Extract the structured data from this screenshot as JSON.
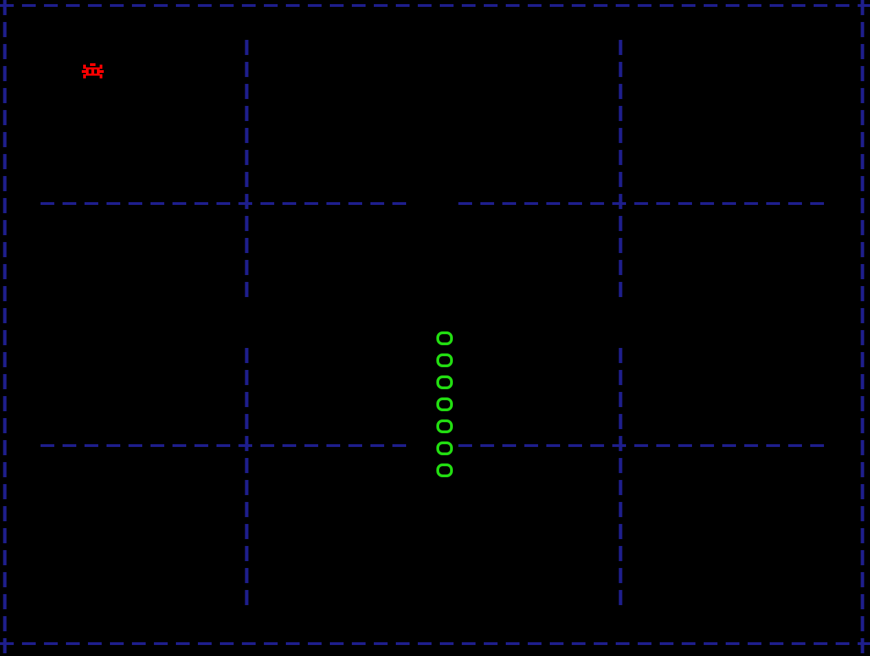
{
  "game": {
    "name": "",
    "background_color": "#000000",
    "wall_color": "#1e1e8c",
    "snake_color": "#22dd11",
    "snake_glyph": "O",
    "food_color": "#ff0000",
    "food_icon": "bug-icon",
    "snake_length": 7,
    "snake_direction": "vertical"
  }
}
